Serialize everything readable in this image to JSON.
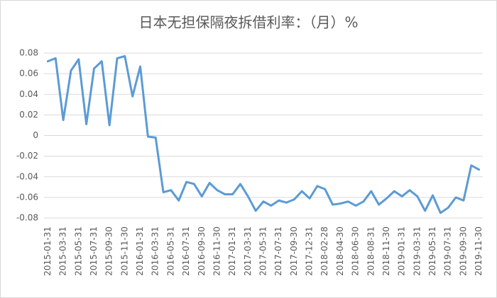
{
  "chart_data": {
    "type": "line",
    "title": "日本无担保隔夜拆借利率：（月）%",
    "categories": [
      "2015-01-31",
      null,
      "2015-03-31",
      null,
      "2015-05-31",
      null,
      "2015-07-31",
      null,
      "2015-09-30",
      null,
      "2015-11-30",
      null,
      "2016-01-31",
      null,
      "2016-03-31",
      null,
      "2016-05-31",
      null,
      "2016-07-31",
      null,
      "2016-09-30",
      null,
      "2016-11-30",
      null,
      "2017-01-31",
      null,
      "2017-03-31",
      null,
      "2017-05-31",
      null,
      "2017-07-31",
      null,
      "2017-09-30",
      null,
      "2017-12-31",
      null,
      "2018-02-28",
      null,
      "2018-04-30",
      null,
      "2018-06-30",
      null,
      "2018-08-31",
      null,
      "2018-11-30",
      null,
      "2019-01-31",
      null,
      "2019-03-31",
      null,
      "2019-05-31",
      null,
      "2019-07-31",
      null,
      "2019-09-30",
      null,
      "2019-11-30"
    ],
    "values": [
      0.072,
      0.075,
      0.015,
      0.063,
      0.074,
      0.011,
      0.065,
      0.072,
      0.01,
      0.075,
      0.077,
      0.038,
      0.067,
      -0.001,
      -0.002,
      -0.055,
      -0.053,
      -0.063,
      -0.045,
      -0.047,
      -0.059,
      -0.046,
      -0.053,
      -0.057,
      -0.057,
      -0.047,
      -0.059,
      -0.073,
      -0.064,
      -0.068,
      -0.063,
      -0.065,
      -0.062,
      -0.054,
      -0.061,
      -0.049,
      -0.052,
      -0.067,
      -0.066,
      -0.064,
      -0.068,
      -0.064,
      -0.054,
      -0.067,
      -0.061,
      -0.054,
      -0.059,
      -0.053,
      -0.059,
      -0.073,
      -0.058,
      -0.075,
      -0.07,
      -0.06,
      -0.063,
      -0.029,
      -0.033
    ],
    "color": "#5b9bd5",
    "ylim": [
      -0.08,
      0.08
    ],
    "yticks": [
      0.08,
      0.06,
      0.04,
      0.02,
      0,
      -0.02,
      -0.04,
      -0.06,
      -0.08
    ],
    "grid": true
  }
}
